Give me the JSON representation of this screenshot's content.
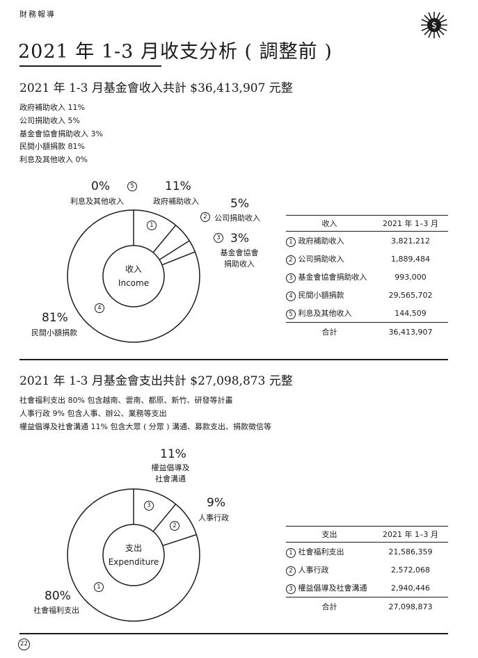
{
  "header": {
    "section": "財務報導",
    "icon": "dollar-sun-icon",
    "title": "2021 年 1-3 月收支分析 ( 調整前 )"
  },
  "income": {
    "heading": "2021 年 1-3 月基金會收入共計 $36,413,907 元整",
    "desc": [
      "政府補助收入 11%",
      "公司捐助收入 5%",
      "基金會協會捐助收入 3%",
      "民間小額捐款 81%",
      "利息及其他收入 0%"
    ],
    "chart_labels": {
      "s1_pct": "11%",
      "s1_name": "政府補助收入",
      "s2_pct": "5%",
      "s2_name": "公司捐助收入",
      "s3_pct": "3%",
      "s3_name_1": "基金會協會",
      "s3_name_2": "捐助收入",
      "s4_pct": "81%",
      "s4_name": "民間小額捐款",
      "s5_pct": "0%",
      "s5_name": "利息及其他收入"
    },
    "center_zh": "收入",
    "center_en": "Income",
    "table": {
      "col1": "收入",
      "col2": "2021 年 1–3 月",
      "rows": [
        {
          "num": "1",
          "name": "政府補助收入",
          "value": "3,821,212"
        },
        {
          "num": "2",
          "name": "公司捐助收入",
          "value": "1,889,484"
        },
        {
          "num": "3",
          "name": "基金會協會捐助收入",
          "value": "993,000"
        },
        {
          "num": "4",
          "name": "民間小額捐款",
          "value": "29,565,702"
        },
        {
          "num": "5",
          "name": "利息及其他收入",
          "value": "144,509"
        }
      ],
      "total_label": "合計",
      "total_value": "36,413,907"
    }
  },
  "expenditure": {
    "heading": "2021 年 1-3 月基金會支出共計 $27,098,873 元整",
    "desc": [
      "社會福利支出 80% 包含越南、雲南、都原、新竹、研發等計畫",
      "人事行政 9% 包含人事、辦公、業務等支出",
      "權益倡導及社會溝通 11% 包含大眾 ( 分眾 ) 溝通、募款支出、捐款徵信等"
    ],
    "chart_labels": {
      "s1_pct": "80%",
      "s1_name": "社會福利支出",
      "s2_pct": "9%",
      "s2_name": "人事行政",
      "s3_pct": "11%",
      "s3_name_1": "權益倡導及",
      "s3_name_2": "社會溝通"
    },
    "center_zh": "支出",
    "center_en": "Expenditure",
    "table": {
      "col1": "支出",
      "col2": "2021 年 1–3 月",
      "rows": [
        {
          "num": "1",
          "name": "社會福利支出",
          "value": "21,586,359"
        },
        {
          "num": "2",
          "name": "人事行政",
          "value": "2,572,068"
        },
        {
          "num": "3",
          "name": "權益倡導及社會溝通",
          "value": "2,940,446"
        }
      ],
      "total_label": "合計",
      "total_value": "27,098,873"
    }
  },
  "chart_data": [
    {
      "type": "pie",
      "title": "收入",
      "categories": [
        "政府補助收入",
        "公司捐助收入",
        "基金會協會捐助收入",
        "民間小額捐款",
        "利息及其他收入"
      ],
      "values": [
        11,
        5,
        3,
        81,
        0
      ]
    },
    {
      "type": "pie",
      "title": "支出",
      "categories": [
        "社會福利支出",
        "人事行政",
        "權益倡導及社會溝通"
      ],
      "values": [
        80,
        9,
        11
      ]
    }
  ],
  "page_number": "22"
}
